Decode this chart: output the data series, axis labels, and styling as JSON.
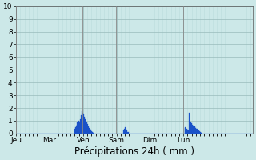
{
  "xlabel": "Précipitations 24h ( mm )",
  "ylim": [
    0,
    10
  ],
  "yticks": [
    0,
    1,
    2,
    3,
    4,
    5,
    6,
    7,
    8,
    9,
    10
  ],
  "background_color": "#cce8e8",
  "bar_color": "#1a52c8",
  "bar_edge_color": "#1a52c8",
  "day_labels": [
    "Jeu",
    "Mar",
    "Ven",
    "Sam",
    "Dim",
    "Lun"
  ],
  "n_per_day": 48,
  "total_days": 7,
  "vline_color": "#888888",
  "grid_major_color": "#99bbbb",
  "grid_minor_color": "#bbdddd",
  "tick_fontsize": 6.5,
  "label_fontsize": 8.5,
  "bars": [
    0,
    0,
    0,
    0,
    0,
    0,
    0,
    0,
    0,
    0,
    0,
    0,
    0,
    0,
    0,
    0,
    0,
    0,
    0,
    0,
    0,
    0,
    0,
    0,
    0,
    0,
    0,
    0,
    0,
    0,
    0,
    0,
    0,
    0,
    0,
    0,
    0,
    0,
    0,
    0,
    0,
    0,
    0,
    0,
    0,
    0,
    0,
    0,
    0,
    0,
    0,
    0,
    0,
    0,
    0,
    0,
    0,
    0,
    0,
    0,
    0,
    0,
    0,
    0,
    0,
    0,
    0,
    0,
    0,
    0,
    0,
    0,
    0,
    0,
    0,
    0,
    0,
    0,
    0,
    0,
    0,
    0,
    0,
    0,
    0.35,
    0.5,
    0.6,
    0.7,
    0.85,
    0.95,
    1.0,
    0.95,
    1.15,
    1.45,
    1.75,
    1.85,
    1.65,
    1.5,
    1.3,
    1.1,
    0.95,
    0.85,
    0.75,
    0.65,
    0.55,
    0.45,
    0.35,
    0.3,
    0.2,
    0.15,
    0.1,
    0.05,
    0,
    0,
    0,
    0,
    0,
    0,
    0,
    0,
    0,
    0,
    0,
    0,
    0,
    0,
    0,
    0,
    0,
    0,
    0,
    0,
    0,
    0,
    0,
    0,
    0,
    0,
    0,
    0,
    0,
    0,
    0,
    0,
    0,
    0,
    0,
    0,
    0,
    0,
    0,
    0,
    0,
    0,
    0.25,
    0.35,
    0.5,
    0.45,
    0.35,
    0.25,
    0.15,
    0.1,
    0,
    0,
    0,
    0,
    0,
    0,
    0,
    0,
    0,
    0,
    0,
    0,
    0,
    0,
    0,
    0,
    0,
    0,
    0,
    0,
    0,
    0,
    0,
    0,
    0,
    0,
    0,
    0,
    0,
    0,
    0,
    0,
    0,
    0,
    0,
    0,
    0,
    0,
    0,
    0,
    0,
    0,
    0,
    0,
    0,
    0,
    0,
    0,
    0,
    0,
    0,
    0,
    0,
    0,
    0,
    0,
    0,
    0,
    0,
    0,
    0,
    0,
    0,
    0,
    0,
    0,
    0,
    0,
    0,
    0,
    0,
    0,
    0,
    0,
    0,
    0,
    0,
    0,
    0,
    0,
    0.45,
    0.5,
    0.4,
    0.35,
    0.3,
    0.25,
    1.6,
    1.2,
    1.0,
    0.9,
    0.8,
    0.7,
    0.65,
    0.6,
    0.55,
    0.5,
    0.45,
    0.4,
    0.35,
    0.3,
    0.25,
    0.2,
    0.15,
    0.1,
    0.05,
    0,
    0,
    0,
    0,
    0,
    0,
    0,
    0,
    0,
    0,
    0,
    0,
    0,
    0,
    0,
    0,
    0,
    0,
    0,
    0,
    0,
    0,
    0,
    0,
    0,
    0,
    0,
    0,
    0,
    0,
    0,
    0,
    0,
    0,
    0,
    0,
    0,
    0,
    0,
    0,
    0,
    0,
    0,
    0,
    0,
    0,
    0,
    0,
    0,
    0,
    0,
    0,
    0,
    0,
    0,
    0,
    0,
    0,
    0,
    0,
    0,
    0,
    0,
    0,
    0,
    0,
    0,
    0,
    0,
    0,
    0,
    0,
    0
  ]
}
